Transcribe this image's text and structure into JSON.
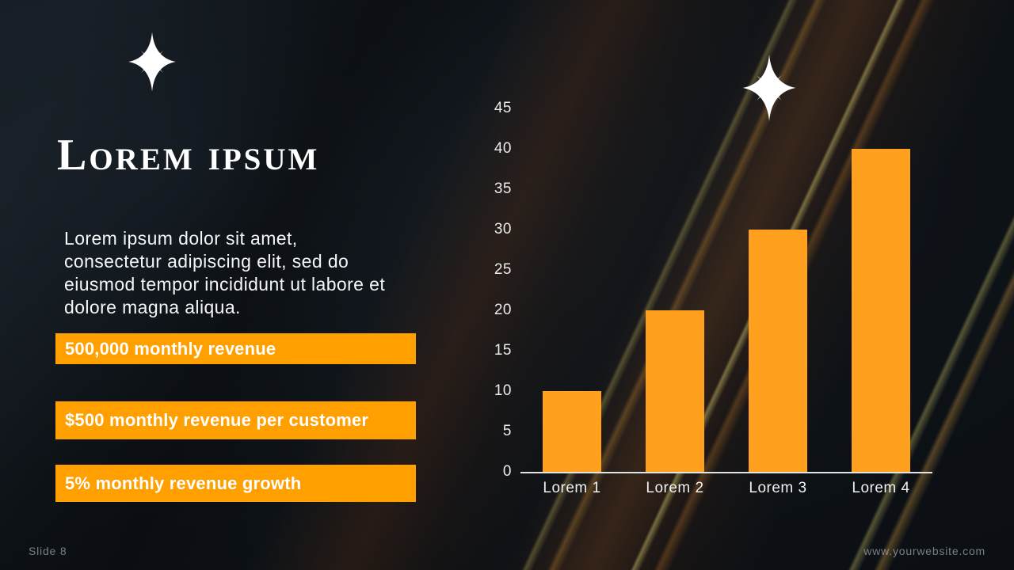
{
  "slide": {
    "title": "Lorem ipsum",
    "body": "Lorem ipsum dolor sit amet,\nconsectetur adipiscing elit, sed do\neiusmod tempor incididunt ut labore et\ndolore magna aliqua.",
    "highlights": [
      "500,000 monthly revenue",
      "$500 monthly revenue per customer",
      "5% monthly revenue growth"
    ],
    "footer_left": "Slide 8",
    "footer_right": "www.yourwebsite.com",
    "accent_color": "#FF9F00",
    "text_color": "#FFFFFF"
  },
  "chart_data": {
    "type": "bar",
    "categories": [
      "Lorem 1",
      "Lorem 2",
      "Lorem 3",
      "Lorem 4"
    ],
    "values": [
      10,
      20,
      30,
      40
    ],
    "title": "",
    "xlabel": "",
    "ylabel": "",
    "ylim": [
      0,
      45
    ],
    "yticks": [
      0,
      5,
      10,
      15,
      20,
      25,
      30,
      35,
      40,
      45
    ],
    "grid": false,
    "legend": false,
    "bar_color": "#FFA01E",
    "axis_color": "#E3E3E3"
  }
}
